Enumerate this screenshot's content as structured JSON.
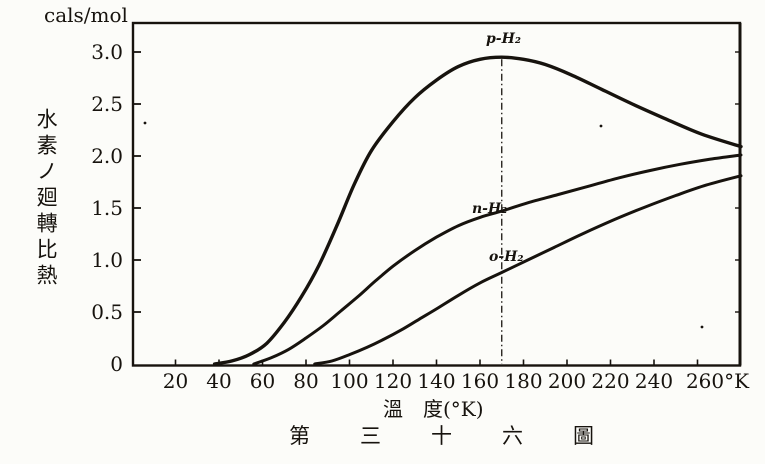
{
  "figure": {
    "unit_label": "cals/mol",
    "y_axis_title": "水素ノ廻轉比熱",
    "x_axis_title": "溫　度(°K)",
    "caption": "第三十六圖",
    "ink_color": "#17130e",
    "background_color": "#fcfcf9"
  },
  "chart_data": {
    "type": "line",
    "title": "第三十六圖 (Figure 36)",
    "xlabel": "溫度(°K)",
    "ylabel": "水素ノ廻轉比熱 (cals/mol)",
    "xlim": [
      0,
      280
    ],
    "ylim": [
      0,
      3.3
    ],
    "grid": false,
    "legend_position": "on-curve",
    "x_ticks": [
      20,
      40,
      60,
      80,
      100,
      120,
      140,
      160,
      180,
      200,
      220,
      240,
      260
    ],
    "x_tick_labels": [
      "20",
      "40",
      "60",
      "80",
      "100",
      "120",
      "140",
      "160",
      "180",
      "200",
      "220",
      "240",
      "260°K"
    ],
    "y_ticks": [
      0,
      0.5,
      1.0,
      1.5,
      2.0,
      2.5,
      3.0
    ],
    "y_tick_labels": [
      "0",
      "0.5",
      "1.0",
      "1.5",
      "2.0",
      "2.5",
      "3.0"
    ],
    "marker_line": {
      "x": 170,
      "style": "vertical dash-dot",
      "from_y": 2.95,
      "to_y": 0
    },
    "series": [
      {
        "name": "p-H₂",
        "points": [
          [
            38,
            0
          ],
          [
            46,
            0.03
          ],
          [
            54,
            0.09
          ],
          [
            62,
            0.2
          ],
          [
            70,
            0.4
          ],
          [
            78,
            0.65
          ],
          [
            86,
            0.95
          ],
          [
            94,
            1.32
          ],
          [
            102,
            1.72
          ],
          [
            110,
            2.05
          ],
          [
            120,
            2.33
          ],
          [
            130,
            2.56
          ],
          [
            140,
            2.73
          ],
          [
            150,
            2.86
          ],
          [
            160,
            2.93
          ],
          [
            170,
            2.95
          ],
          [
            180,
            2.93
          ],
          [
            190,
            2.88
          ],
          [
            202,
            2.78
          ],
          [
            216,
            2.64
          ],
          [
            230,
            2.5
          ],
          [
            245,
            2.36
          ],
          [
            262,
            2.21
          ],
          [
            280,
            2.09
          ]
        ]
      },
      {
        "name": "n-H₂",
        "points": [
          [
            56,
            0
          ],
          [
            64,
            0.06
          ],
          [
            72,
            0.14
          ],
          [
            80,
            0.25
          ],
          [
            88,
            0.37
          ],
          [
            96,
            0.51
          ],
          [
            104,
            0.65
          ],
          [
            112,
            0.8
          ],
          [
            120,
            0.94
          ],
          [
            130,
            1.09
          ],
          [
            140,
            1.22
          ],
          [
            150,
            1.33
          ],
          [
            160,
            1.41
          ],
          [
            170,
            1.47
          ],
          [
            182,
            1.55
          ],
          [
            196,
            1.63
          ],
          [
            210,
            1.71
          ],
          [
            224,
            1.79
          ],
          [
            238,
            1.86
          ],
          [
            252,
            1.92
          ],
          [
            266,
            1.97
          ],
          [
            280,
            2.01
          ]
        ]
      },
      {
        "name": "o-H₂",
        "points": [
          [
            84,
            0
          ],
          [
            92,
            0.03
          ],
          [
            100,
            0.09
          ],
          [
            108,
            0.16
          ],
          [
            116,
            0.24
          ],
          [
            124,
            0.33
          ],
          [
            132,
            0.43
          ],
          [
            140,
            0.53
          ],
          [
            150,
            0.66
          ],
          [
            160,
            0.78
          ],
          [
            170,
            0.88
          ],
          [
            182,
            1.0
          ],
          [
            194,
            1.12
          ],
          [
            208,
            1.26
          ],
          [
            222,
            1.39
          ],
          [
            236,
            1.51
          ],
          [
            250,
            1.62
          ],
          [
            264,
            1.72
          ],
          [
            280,
            1.81
          ]
        ]
      }
    ]
  }
}
